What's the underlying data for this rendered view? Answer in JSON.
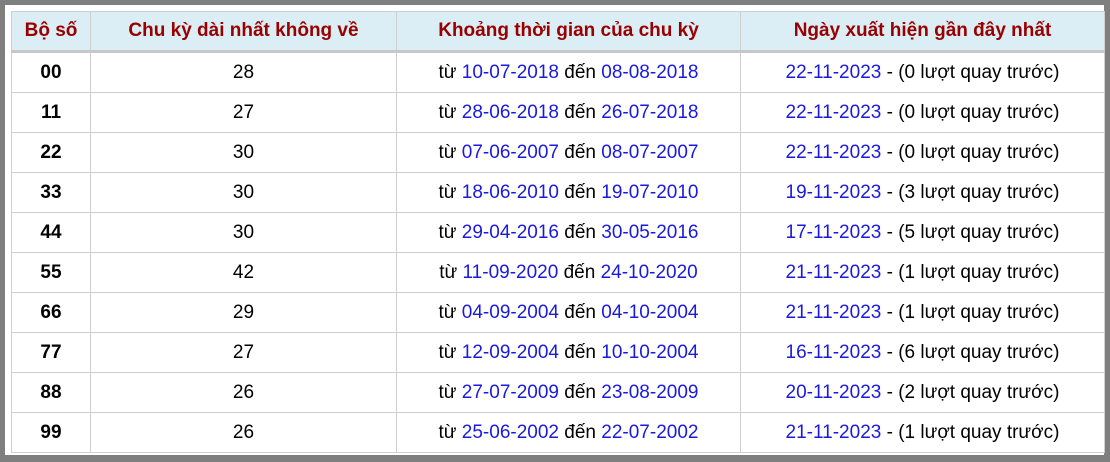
{
  "headers": [
    "Bộ số",
    "Chu kỳ dài nhất không về",
    "Khoảng thời gian của chu kỳ",
    "Ngày xuất hiện gần đây nhất"
  ],
  "labels": {
    "from": "từ",
    "to": "đến"
  },
  "colors": {
    "header_text": "#990000",
    "header_bg": "#dbedf5",
    "date": "#1a1adc",
    "frame": "#7f7f7f"
  },
  "rows": [
    {
      "pair": "00",
      "cycle": "28",
      "start": "10-07-2018",
      "end": "08-08-2018",
      "last": "22-11-2023",
      "ago": " - (0 lượt quay trước)"
    },
    {
      "pair": "11",
      "cycle": "27",
      "start": "28-06-2018",
      "end": "26-07-2018",
      "last": "22-11-2023",
      "ago": " - (0 lượt quay trước)"
    },
    {
      "pair": "22",
      "cycle": "30",
      "start": "07-06-2007",
      "end": "08-07-2007",
      "last": "22-11-2023",
      "ago": " - (0 lượt quay trước)"
    },
    {
      "pair": "33",
      "cycle": "30",
      "start": "18-06-2010",
      "end": "19-07-2010",
      "last": "19-11-2023",
      "ago": " - (3 lượt quay trước)"
    },
    {
      "pair": "44",
      "cycle": "30",
      "start": "29-04-2016",
      "end": "30-05-2016",
      "last": "17-11-2023",
      "ago": " - (5 lượt quay trước)"
    },
    {
      "pair": "55",
      "cycle": "42",
      "start": "11-09-2020",
      "end": "24-10-2020",
      "last": "21-11-2023",
      "ago": " - (1 lượt quay trước)"
    },
    {
      "pair": "66",
      "cycle": "29",
      "start": "04-09-2004",
      "end": "04-10-2004",
      "last": "21-11-2023",
      "ago": " - (1 lượt quay trước)"
    },
    {
      "pair": "77",
      "cycle": "27",
      "start": "12-09-2004",
      "end": "10-10-2004",
      "last": "16-11-2023",
      "ago": " - (6 lượt quay trước)"
    },
    {
      "pair": "88",
      "cycle": "26",
      "start": "27-07-2009",
      "end": "23-08-2009",
      "last": "20-11-2023",
      "ago": " - (2 lượt quay trước)"
    },
    {
      "pair": "99",
      "cycle": "26",
      "start": "25-06-2002",
      "end": "22-07-2002",
      "last": "21-11-2023",
      "ago": " - (1 lượt quay trước)"
    }
  ]
}
